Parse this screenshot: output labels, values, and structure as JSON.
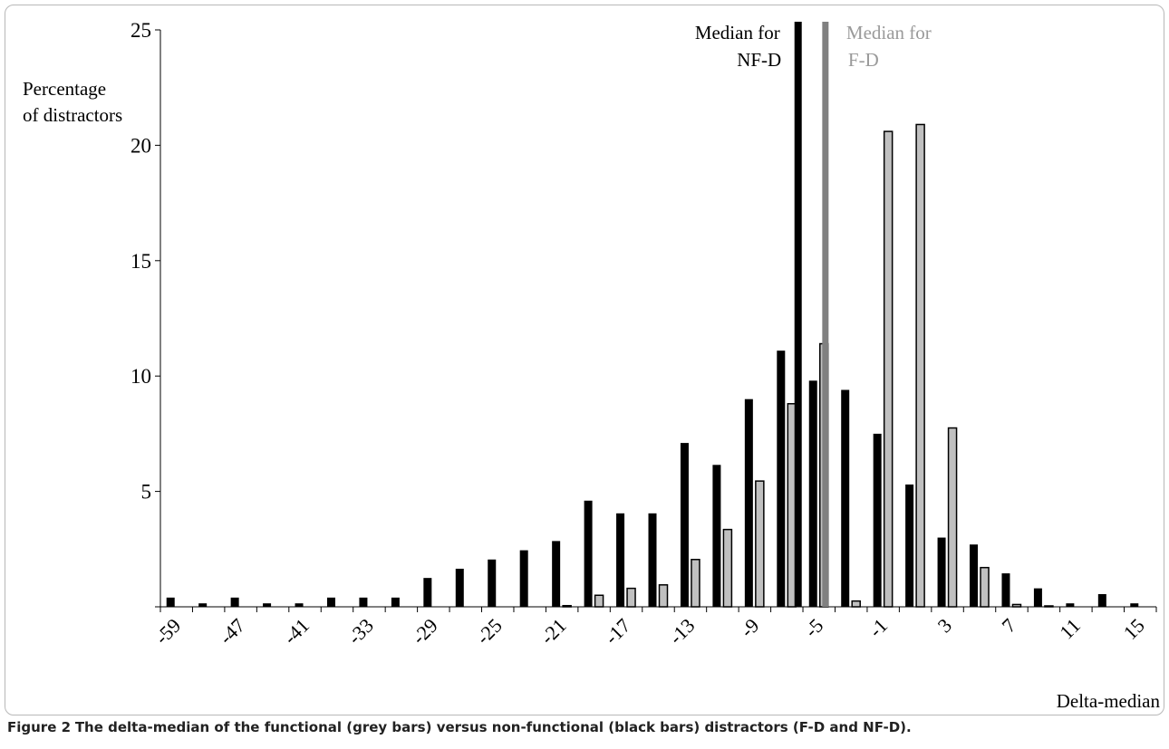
{
  "chart_data": {
    "type": "bar",
    "ylabel_lines": [
      "Percentage",
      "of distractors"
    ],
    "xlabel": "Delta-median",
    "ylim": [
      0,
      25
    ],
    "yticks": [
      0,
      5,
      10,
      15,
      20,
      25
    ],
    "categories": [
      -59,
      -53,
      -47,
      -44,
      -41,
      -37,
      -33,
      -31,
      -29,
      -27,
      -25,
      -23,
      -21,
      -19,
      -17,
      -15,
      -13,
      -11,
      -9,
      -7,
      -5,
      -3,
      -1,
      1,
      3,
      5,
      7,
      9,
      11,
      13,
      15
    ],
    "category_labels": [
      "-59",
      "",
      "-47",
      "",
      "-41",
      "",
      "-33",
      "",
      "-29",
      "",
      "-25",
      "",
      "-21",
      "",
      "-17",
      "",
      "-13",
      "",
      "-9",
      "",
      "-5",
      "",
      "-1",
      "",
      "3",
      "",
      "7",
      "",
      "11",
      "",
      "15"
    ],
    "series": [
      {
        "key": "nfd",
        "color": "#000000",
        "values": [
          0.4,
          0.15,
          0.4,
          0.15,
          0.15,
          0.4,
          0.4,
          0.4,
          1.25,
          1.65,
          2.05,
          2.45,
          2.85,
          4.6,
          4.05,
          4.05,
          7.1,
          6.15,
          9.0,
          11.1,
          9.8,
          9.4,
          7.5,
          5.3,
          3.0,
          2.7,
          1.45,
          0.8,
          0.15,
          0.55,
          0.15
        ]
      },
      {
        "key": "fd",
        "color": "#c0c0c0",
        "values": [
          0,
          0,
          0,
          0,
          0,
          0,
          0,
          0,
          0,
          0,
          0,
          0,
          0.05,
          0.5,
          0.8,
          0.95,
          2.05,
          3.35,
          5.45,
          8.8,
          11.4,
          0.25,
          20.6,
          20.9,
          7.75,
          1.7,
          0.1,
          0.02,
          0,
          0,
          0
        ]
      }
    ],
    "median_lines": [
      {
        "key": "nfd",
        "label_lines": [
          "Median for",
          "NF-D"
        ],
        "color": "#000000",
        "text_color": "#000000",
        "x": -6.3
      },
      {
        "key": "fd",
        "label_lines": [
          "Median for",
          "F-D"
        ],
        "color": "#808080",
        "text_color": "#9a9a9a",
        "x": -4.6
      }
    ]
  },
  "caption": {
    "lead": "Figure 2",
    "text": "The delta-median of the functional (grey bars) versus non-functional (black bars) distractors (F-D and NF-D)."
  }
}
